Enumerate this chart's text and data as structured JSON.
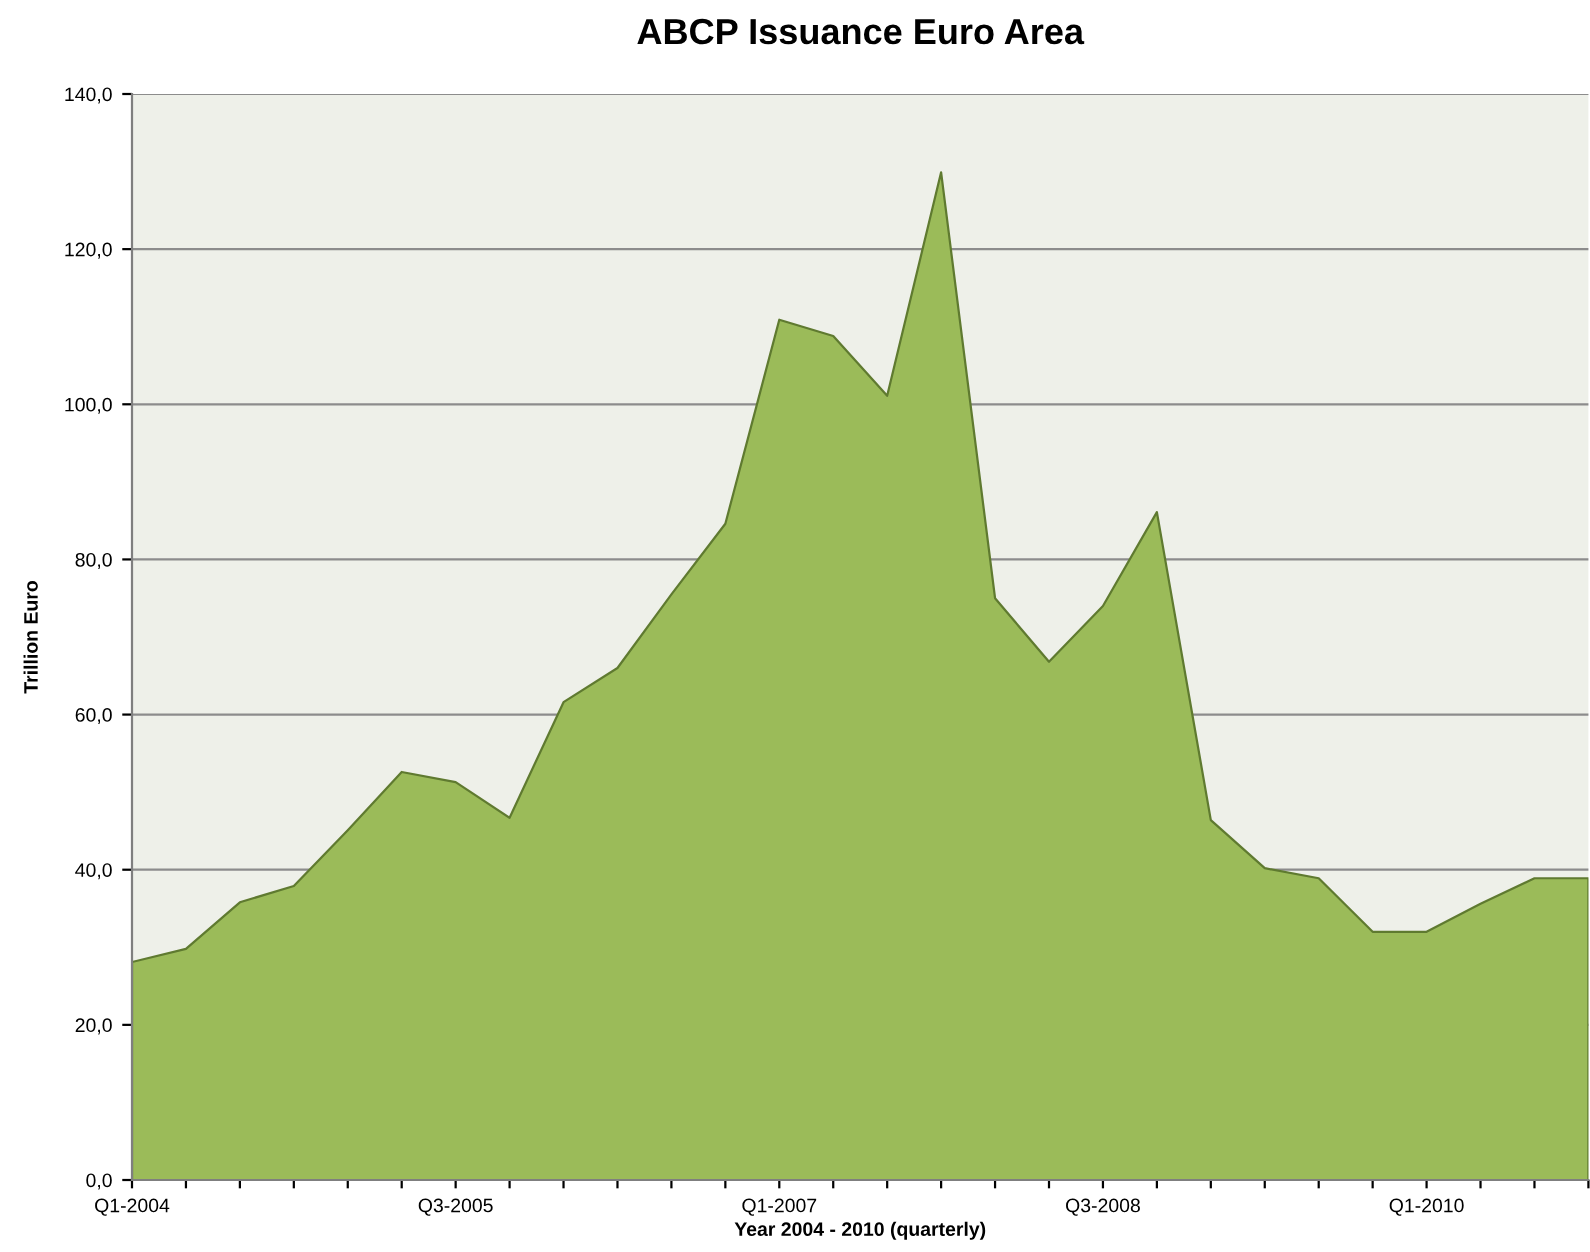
{
  "chart_data": {
    "type": "area",
    "title": "ABCP Issuance Euro Area",
    "xlabel": "Year 2004 - 2010 (quarterly)",
    "ylabel": "Trillion Euro",
    "categories": [
      "Q1-2004",
      null,
      null,
      null,
      null,
      null,
      "Q3-2005",
      null,
      null,
      null,
      null,
      null,
      "Q1-2007",
      null,
      null,
      null,
      null,
      null,
      "Q3-2008",
      null,
      null,
      null,
      null,
      null,
      "Q1-2010",
      null,
      null,
      null
    ],
    "series": [
      {
        "color": "#9bbb59",
        "values": [
          28.1,
          29.8,
          35.8,
          37.9,
          45.1,
          52.6,
          51.3,
          46.7,
          61.6,
          66.0,
          75.5,
          84.6,
          110.9,
          108.8,
          101.1,
          129.9,
          75.0,
          66.8,
          74.0,
          86.1,
          46.4,
          40.2,
          38.9,
          32.0,
          32.0,
          35.6,
          38.9,
          38.9
        ]
      }
    ],
    "ylim": [
      0,
      140
    ],
    "yticks": [
      {
        "value": 0,
        "label": "0,0"
      },
      {
        "value": 20,
        "label": "20,0"
      },
      {
        "value": 40,
        "label": "40,0"
      },
      {
        "value": 60,
        "label": "60,0"
      },
      {
        "value": 80,
        "label": "80,0"
      },
      {
        "value": 100,
        "label": "100,0"
      },
      {
        "value": 120,
        "label": "120,0"
      },
      {
        "value": 140,
        "label": "140,0"
      }
    ],
    "grid": "y"
  }
}
